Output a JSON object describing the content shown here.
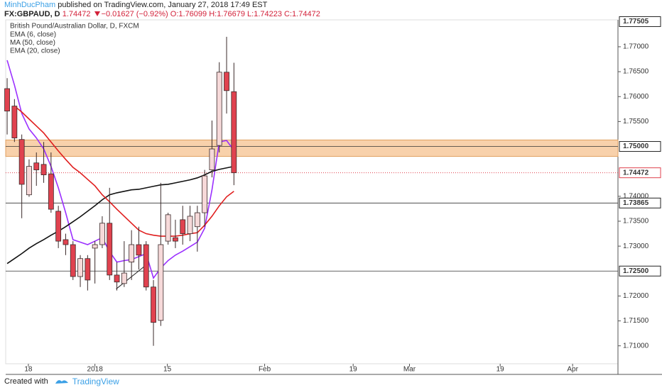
{
  "header": {
    "author": "MinhDucPham",
    "published": "published on TradingView.com, January 27, 2018 17:49 EST",
    "symbol": "FX:GBPAUD, D",
    "last": "1.74472",
    "change": "−0.01627 (−0.92%)",
    "ohlc": [
      "O:1.76099",
      "H:1.76679",
      "L:1.74223",
      "C:1.74472"
    ]
  },
  "footer": {
    "created": "Created with",
    "brand": "TradingView"
  },
  "chart_data": {
    "type": "candlestick",
    "title": "British Pound/Australian Dollar, D, FXCM",
    "x": [
      0,
      1,
      2,
      3,
      4,
      5,
      6,
      7,
      8,
      9,
      10,
      11,
      12,
      13,
      14,
      15,
      16,
      17,
      18,
      19,
      20,
      21,
      22,
      23,
      24,
      25,
      26,
      27,
      28,
      29,
      30,
      31
    ],
    "open": [
      1.7616,
      1.7581,
      1.7514,
      1.7403,
      1.7467,
      1.7464,
      1.7445,
      1.737,
      1.7313,
      1.7303,
      1.7239,
      1.7275,
      1.7296,
      1.7303,
      1.7346,
      1.7242,
      1.7225,
      1.7268,
      1.7303,
      1.7303,
      1.7218,
      1.7151,
      1.731,
      1.7317,
      1.7353,
      1.7325,
      1.7339,
      1.7367,
      1.7453,
      1.7502,
      1.7649,
      1.76099
    ],
    "high": [
      1.7637,
      1.7595,
      1.7524,
      1.7474,
      1.7488,
      1.7509,
      1.7488,
      1.7381,
      1.7325,
      1.731,
      1.7282,
      1.7282,
      1.731,
      1.736,
      1.7417,
      1.7268,
      1.731,
      1.7332,
      1.7339,
      1.731,
      1.7232,
      1.7427,
      1.7367,
      1.7353,
      1.7381,
      1.7381,
      1.7381,
      1.7453,
      1.7552,
      1.7669,
      1.772,
      1.76679
    ],
    "low": [
      1.7524,
      1.7509,
      1.7356,
      1.7399,
      1.7421,
      1.7427,
      1.7367,
      1.7296,
      1.7282,
      1.7232,
      1.7218,
      1.7211,
      1.7225,
      1.7296,
      1.7232,
      1.7211,
      1.7218,
      1.7232,
      1.7253,
      1.7211,
      1.71,
      1.714,
      1.7303,
      1.7296,
      1.7303,
      1.731,
      1.7289,
      1.7339,
      1.7438,
      1.7488,
      1.7566,
      1.74223
    ],
    "close": [
      1.7571,
      1.7517,
      1.7424,
      1.746,
      1.7453,
      1.7443,
      1.7374,
      1.731,
      1.7303,
      1.7239,
      1.7275,
      1.7232,
      1.7303,
      1.7346,
      1.7242,
      1.7228,
      1.7246,
      1.7303,
      1.7282,
      1.7218,
      1.7147,
      1.7303,
      1.7363,
      1.731,
      1.7325,
      1.736,
      1.7367,
      1.7441,
      1.7495,
      1.7649,
      1.7612,
      1.74472
    ],
    "up_color": "#f6d9d9",
    "down_color": "#e0424f",
    "outline_color": "#3a2a2a",
    "series": [
      {
        "name": "EMA (6, close)",
        "color": "#9b30ff",
        "values": [
          1.7673,
          1.7623,
          1.7566,
          1.7535,
          1.7517,
          1.7495,
          1.746,
          1.7417,
          1.7367,
          1.7313,
          1.7308,
          1.7303,
          1.731,
          1.7317,
          1.7289,
          1.7268,
          1.7271,
          1.7273,
          1.7279,
          1.7285,
          1.7236,
          1.7256,
          1.7271,
          1.7282,
          1.729,
          1.7299,
          1.7308,
          1.7336,
          1.7413,
          1.7509,
          1.7512,
          1.7492
        ]
      },
      {
        "name": "MA (50, close)",
        "color": "#111111",
        "values": [
          1.7265,
          1.7275,
          1.7285,
          1.7296,
          1.7305,
          1.7313,
          1.7322,
          1.733,
          1.7339,
          1.7349,
          1.7359,
          1.737,
          1.7381,
          1.7393,
          1.7403,
          1.7407,
          1.741,
          1.7413,
          1.7414,
          1.7417,
          1.742,
          1.7423,
          1.7424,
          1.7427,
          1.743,
          1.7433,
          1.7437,
          1.7443,
          1.745,
          1.7454,
          1.7457,
          1.746
        ]
      },
      {
        "name": "EMA (20, close)",
        "color": "#e01e1e",
        "values": [
          null,
          1.7581,
          1.7569,
          1.7555,
          1.7541,
          1.7527,
          1.7509,
          1.7491,
          1.7474,
          1.7458,
          1.7447,
          1.7434,
          1.7421,
          1.7403,
          1.7389,
          1.7374,
          1.736,
          1.7346,
          1.7332,
          1.7325,
          1.7322,
          1.732,
          1.732,
          1.732,
          1.7322,
          1.7325,
          1.7327,
          1.7342,
          1.736,
          1.7381,
          1.7399,
          1.741
        ]
      }
    ],
    "xlim": [
      -0.2,
      83.5
    ],
    "xticks": [
      {
        "value": 2.9,
        "label": "18"
      },
      {
        "value": 12.0,
        "label": "2018"
      },
      {
        "value": 21.9,
        "label": "15"
      },
      {
        "value": 35.2,
        "label": "Feb"
      },
      {
        "value": 47.3,
        "label": "19"
      },
      {
        "value": 55.0,
        "label": "Mar"
      },
      {
        "value": 67.4,
        "label": "19"
      },
      {
        "value": 77.3,
        "label": "Apr"
      }
    ],
    "ylim": [
      1.7064,
      1.7754
    ],
    "yticks": [
      {
        "value": 1.77,
        "label": "1.77000"
      },
      {
        "value": 1.765,
        "label": "1.76500"
      },
      {
        "value": 1.76,
        "label": "1.76000"
      },
      {
        "value": 1.755,
        "label": "1.75500"
      },
      {
        "value": 1.74,
        "label": "1.74000"
      },
      {
        "value": 1.735,
        "label": "1.73500"
      },
      {
        "value": 1.73,
        "label": "1.73000"
      },
      {
        "value": 1.72,
        "label": "1.72000"
      },
      {
        "value": 1.715,
        "label": "1.71500"
      },
      {
        "value": 1.71,
        "label": "1.71000"
      }
    ],
    "top_label": {
      "value": 1.77505,
      "label": "1.77505"
    },
    "zone": [
      1.748,
      1.7513
    ],
    "zone_color": "#f5c28f",
    "hlines": [
      {
        "value": 1.75,
        "label": "1.75000"
      },
      {
        "value": 1.73865,
        "label": "1.73865"
      },
      {
        "value": 1.725,
        "label": "1.72500"
      }
    ],
    "last_price": {
      "value": 1.74472,
      "label": "1.74472",
      "color": "#e0424f"
    },
    "trendline": {
      "x": [
        14.9,
        18.9
      ],
      "y": [
        1.7214,
        1.7261
      ]
    }
  }
}
